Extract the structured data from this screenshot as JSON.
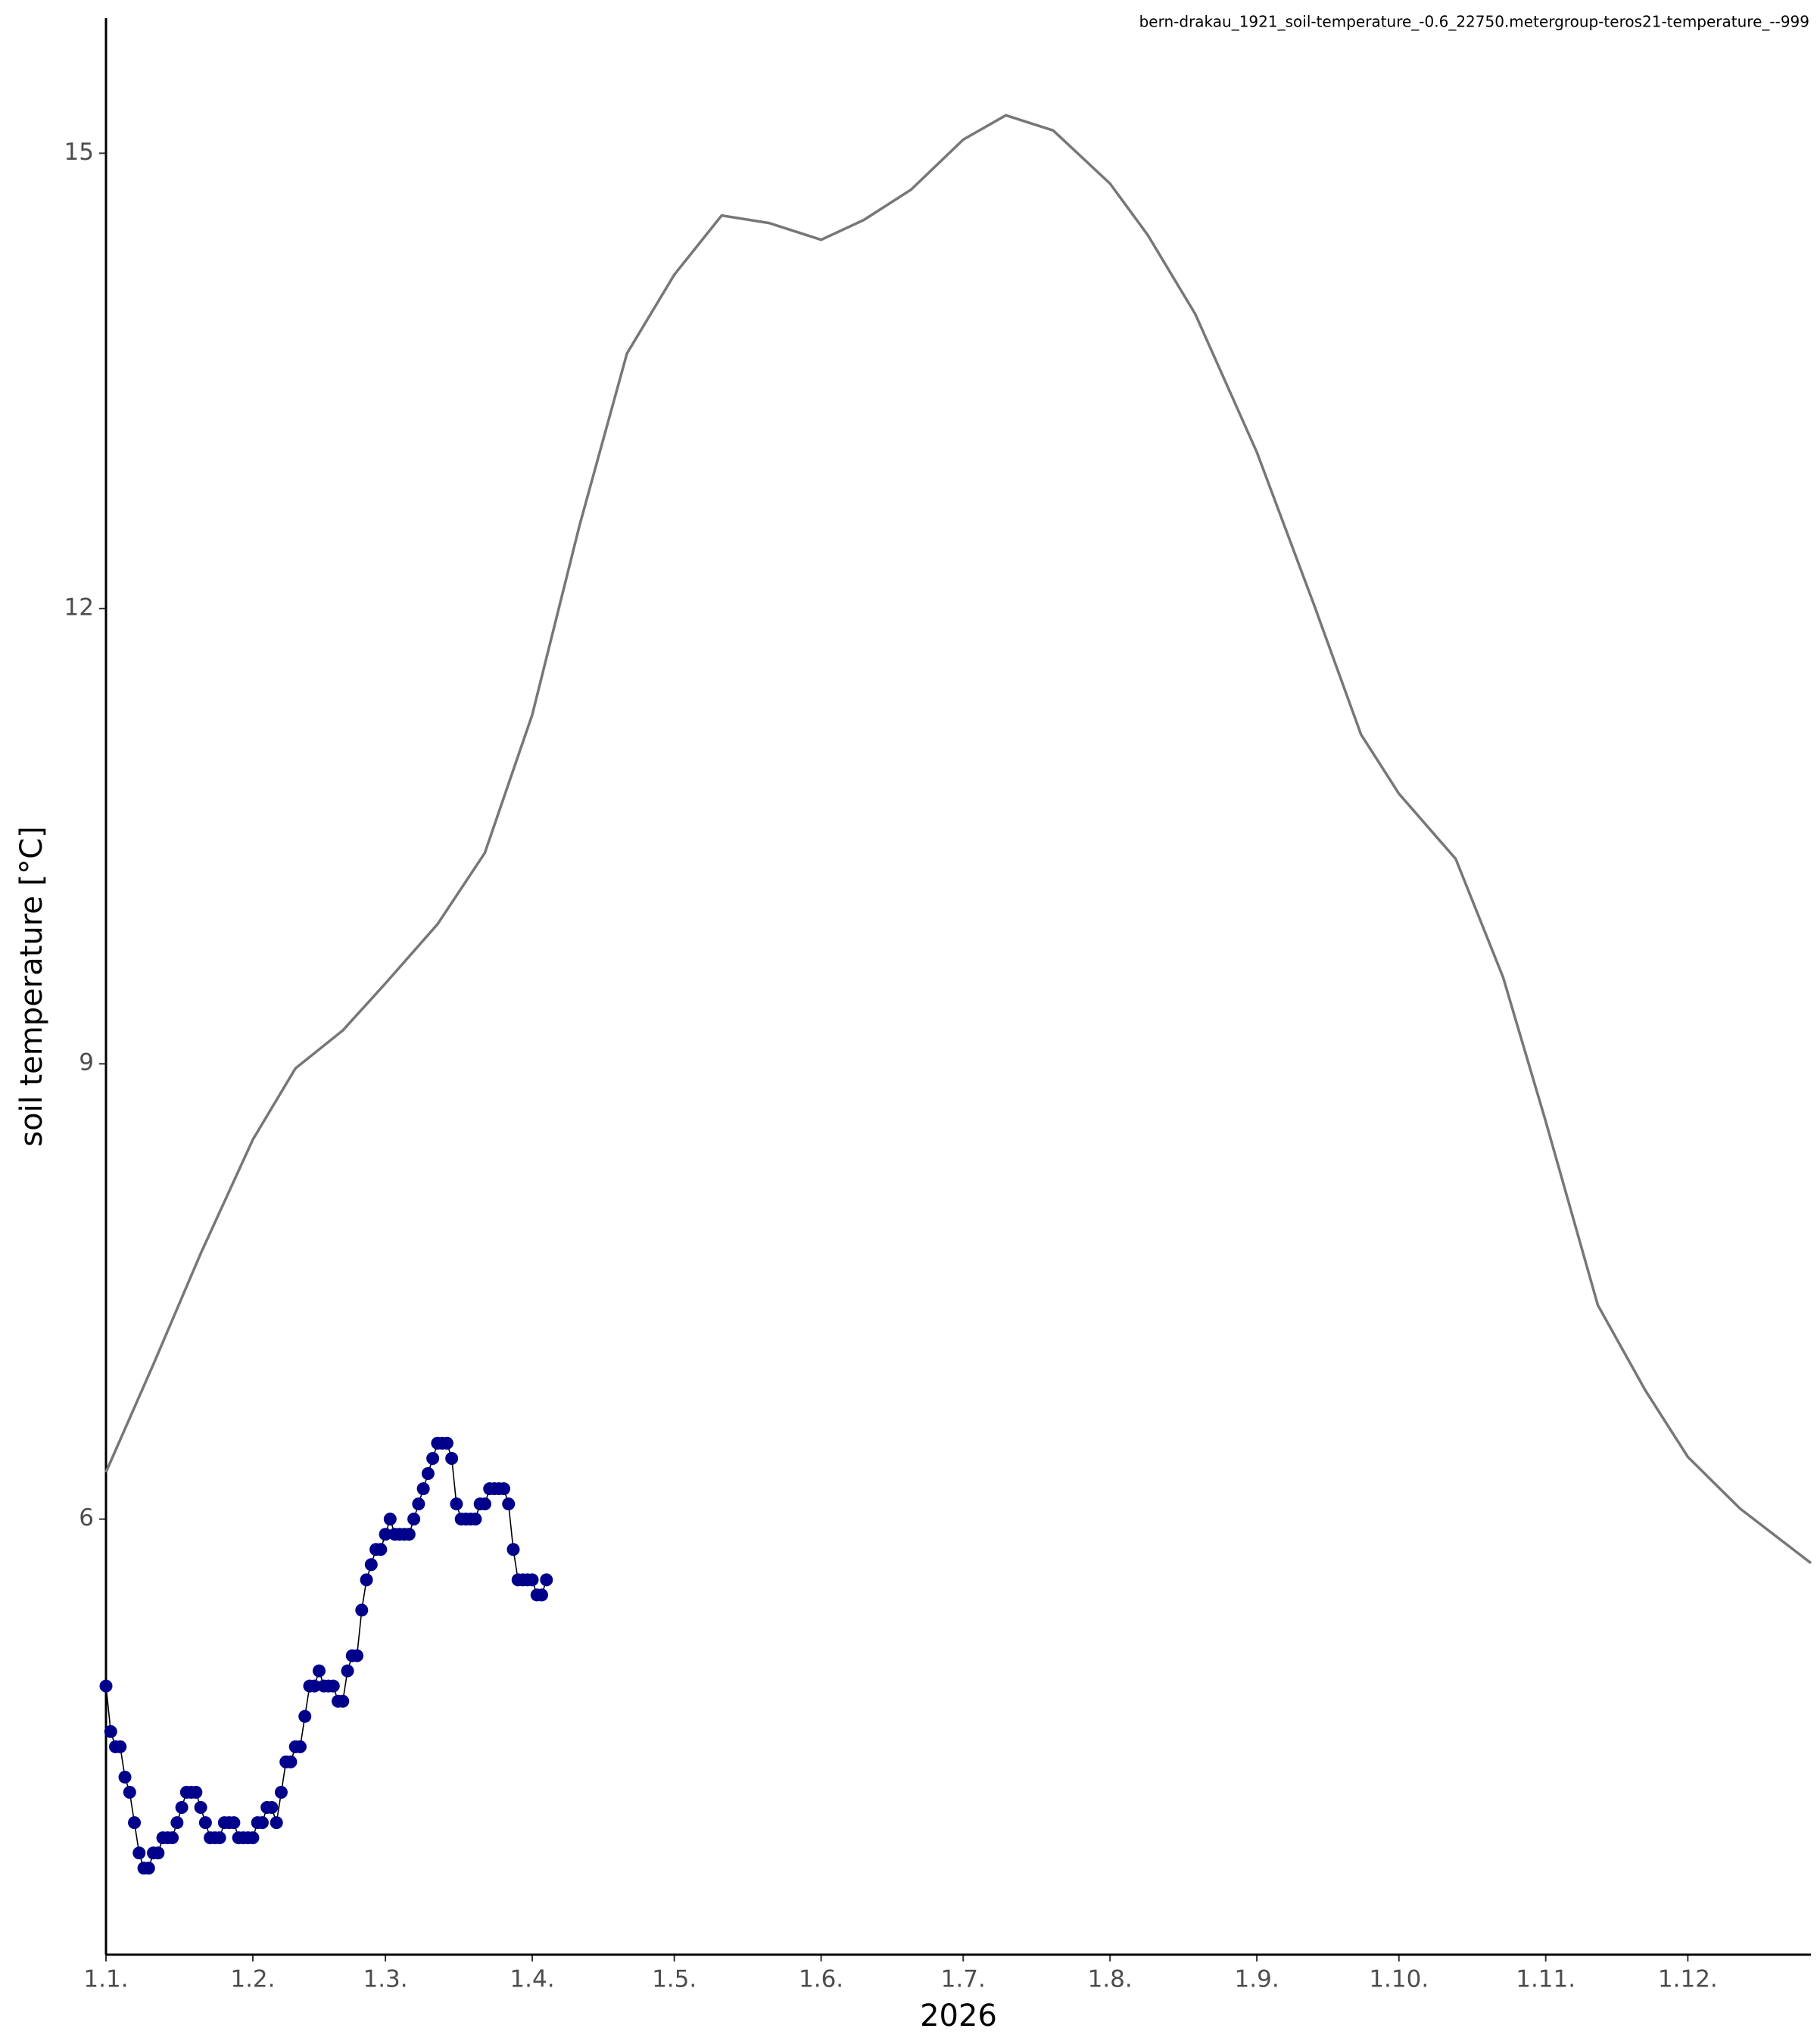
{
  "chart_data": {
    "type": "line",
    "title": "bern-drakau_1921_soil-temperature_-0.6_22750.metergroup-teros21-temperature_--999",
    "xlabel": "2026",
    "ylabel": "soil temperature [°C]",
    "xlim": [
      0,
      360
    ],
    "ylim": [
      3.13,
      15.89
    ],
    "xticks": [
      {
        "value": 0,
        "label": "1.1."
      },
      {
        "value": 31,
        "label": "1.2."
      },
      {
        "value": 59,
        "label": "1.3."
      },
      {
        "value": 90,
        "label": "1.4."
      },
      {
        "value": 120,
        "label": "1.5."
      },
      {
        "value": 151,
        "label": "1.6."
      },
      {
        "value": 181,
        "label": "1.7."
      },
      {
        "value": 212,
        "label": "1.8."
      },
      {
        "value": 243,
        "label": "1.9."
      },
      {
        "value": 273,
        "label": "1.10."
      },
      {
        "value": 304,
        "label": "1.11."
      },
      {
        "value": 334,
        "label": "1.12."
      }
    ],
    "yticks": [
      6,
      9,
      12,
      15
    ],
    "series": [
      {
        "color": "#777777",
        "markers": false,
        "x": [
          0,
          10,
          20,
          31,
          40,
          50,
          59,
          70,
          80,
          90,
          100,
          110,
          120,
          130,
          140,
          151,
          160,
          170,
          181,
          190,
          200,
          212,
          220,
          230,
          243,
          255,
          265,
          273,
          285,
          295,
          304,
          315,
          325,
          334,
          345,
          360
        ],
        "values": [
          6.31,
          7.02,
          7.75,
          8.5,
          8.97,
          9.22,
          9.53,
          9.92,
          10.39,
          11.3,
          12.55,
          13.68,
          14.2,
          14.59,
          14.54,
          14.43,
          14.56,
          14.76,
          15.09,
          15.25,
          15.15,
          14.8,
          14.46,
          13.94,
          13.03,
          12.03,
          11.17,
          10.78,
          10.35,
          9.57,
          8.62,
          7.41,
          6.85,
          6.41,
          6.07,
          5.71
        ]
      },
      {
        "color": "#00008b",
        "markers": true,
        "x": [
          0,
          1,
          2,
          3,
          4,
          5,
          6,
          7,
          8,
          9,
          10,
          11,
          12,
          13,
          14,
          15,
          16,
          17,
          18,
          19,
          20,
          21,
          22,
          23,
          24,
          25,
          26,
          27,
          28,
          29,
          30,
          31,
          32,
          33,
          34,
          35,
          36,
          37,
          38,
          39,
          40,
          41,
          42,
          43,
          44,
          45,
          46,
          47,
          48,
          49,
          50,
          51,
          52,
          53,
          54,
          55,
          56,
          57,
          58,
          59,
          60,
          61,
          62,
          63,
          64,
          65,
          66,
          67,
          68,
          69,
          70,
          71,
          72,
          73,
          74,
          75,
          76,
          77,
          78,
          79,
          80,
          81,
          82,
          83,
          84,
          85,
          86,
          87,
          88,
          89,
          90,
          91,
          92,
          93
        ],
        "values": [
          4.9,
          4.6,
          4.5,
          4.5,
          4.3,
          4.2,
          4.0,
          3.8,
          3.7,
          3.7,
          3.8,
          3.8,
          3.9,
          3.9,
          3.9,
          4.0,
          4.1,
          4.2,
          4.2,
          4.2,
          4.1,
          4.0,
          3.9,
          3.9,
          3.9,
          4.0,
          4.0,
          4.0,
          3.9,
          3.9,
          3.9,
          3.9,
          4.0,
          4.0,
          4.1,
          4.1,
          4.0,
          4.2,
          4.4,
          4.4,
          4.5,
          4.5,
          4.7,
          4.9,
          4.9,
          5.0,
          4.9,
          4.9,
          4.9,
          4.8,
          4.8,
          5.0,
          5.1,
          5.1,
          5.4,
          5.6,
          5.7,
          5.8,
          5.8,
          5.9,
          6.0,
          5.9,
          5.9,
          5.9,
          5.9,
          6.0,
          6.1,
          6.2,
          6.3,
          6.4,
          6.5,
          6.5,
          6.5,
          6.4,
          6.1,
          6.0,
          6.0,
          6.0,
          6.0,
          6.1,
          6.1,
          6.2,
          6.2,
          6.2,
          6.2,
          6.1,
          5.8,
          5.6,
          5.6,
          5.6,
          5.6,
          5.5,
          5.5,
          5.6
        ]
      }
    ]
  }
}
